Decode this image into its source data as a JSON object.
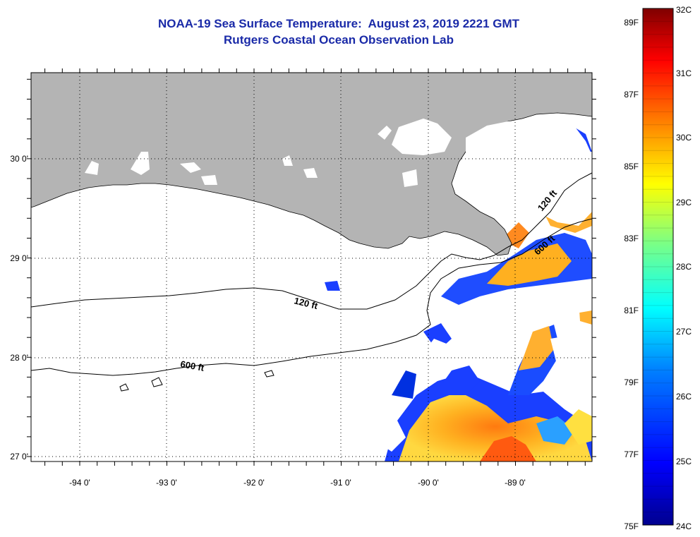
{
  "title": {
    "line1": "NOAA-19 Sea Surface Temperature:  August 23, 2019 2221 GMT",
    "line2": "Rutgers Coastal Ocean Observation Lab"
  },
  "map": {
    "lat_labels": [
      "30 0'",
      "29 0'",
      "28 0'",
      "27 0'"
    ],
    "lon_labels": [
      "-94 0'",
      "-93 0'",
      "-92 0'",
      "-91 0'",
      "-90 0'",
      "-89 0'"
    ],
    "contour_labels": [
      "120 ft",
      "120 ft",
      "600 ft",
      "600 ft"
    ],
    "land_color": "#b4b4b4",
    "cloud_color": "#ffffff",
    "contour_color": "#000000"
  },
  "colorbar": {
    "fahrenheit_labels": [
      "89F",
      "87F",
      "85F",
      "83F",
      "81F",
      "79F",
      "77F",
      "75F"
    ],
    "celsius_labels": [
      "32C",
      "31C",
      "30C",
      "29C",
      "28C",
      "27C",
      "26C",
      "25C",
      "24C"
    ],
    "colors": [
      "#7f0000",
      "#ff0000",
      "#ff8000",
      "#ffff00",
      "#80ff80",
      "#00ffff",
      "#0080ff",
      "#0000ff",
      "#00008f"
    ]
  }
}
